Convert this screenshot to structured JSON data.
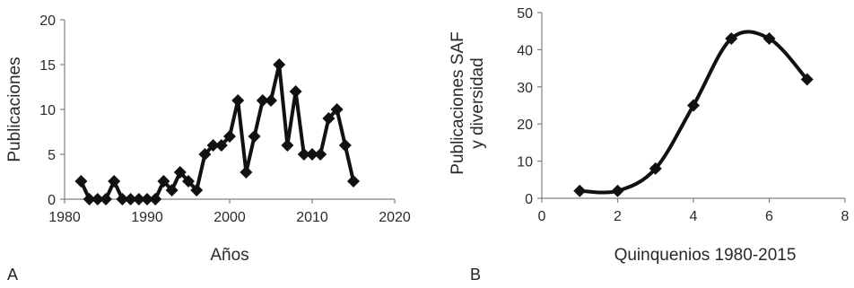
{
  "panels": {
    "a_label": "A",
    "b_label": "B"
  },
  "chart_data": [
    {
      "type": "line",
      "title": "",
      "xlabel": "Años",
      "ylabel": "Publicaciones",
      "xlim": [
        1980,
        2020
      ],
      "ylim": [
        0,
        20
      ],
      "xticks": [
        1980,
        1990,
        2000,
        2010,
        2020
      ],
      "yticks": [
        0,
        5,
        10,
        15,
        20
      ],
      "grid": false,
      "marker": "diamond",
      "series": [
        {
          "x": [
            1982,
            1983,
            1984,
            1985,
            1986,
            1987,
            1988,
            1989,
            1990,
            1991,
            1992,
            1993,
            1994,
            1995,
            1996,
            1997,
            1998,
            1999,
            2000,
            2001,
            2002,
            2003,
            2004,
            2005,
            2006,
            2007,
            2008,
            2009,
            2010,
            2011,
            2012,
            2013,
            2014,
            2015
          ],
          "y": [
            2,
            0,
            0,
            0,
            2,
            0,
            0,
            0,
            0,
            0,
            2,
            1,
            3,
            2,
            1,
            5,
            6,
            6,
            7,
            11,
            3,
            7,
            11,
            11,
            15,
            6,
            12,
            5,
            5,
            5,
            9,
            10,
            6,
            2
          ]
        }
      ]
    },
    {
      "type": "line",
      "title": "",
      "xlabel": "Quinquenios 1980-2015",
      "ylabel": "Publicaciones SAF y diversidad",
      "xlim": [
        0,
        8
      ],
      "ylim": [
        0,
        50
      ],
      "xticks": [
        0,
        2,
        4,
        6,
        8
      ],
      "yticks": [
        0,
        10,
        20,
        30,
        40,
        50
      ],
      "grid": false,
      "marker": "diamond",
      "smooth": true,
      "series": [
        {
          "x": [
            1,
            2,
            3,
            4,
            5,
            6,
            7
          ],
          "y": [
            2,
            2,
            8,
            25,
            43,
            43,
            32
          ]
        }
      ]
    }
  ]
}
